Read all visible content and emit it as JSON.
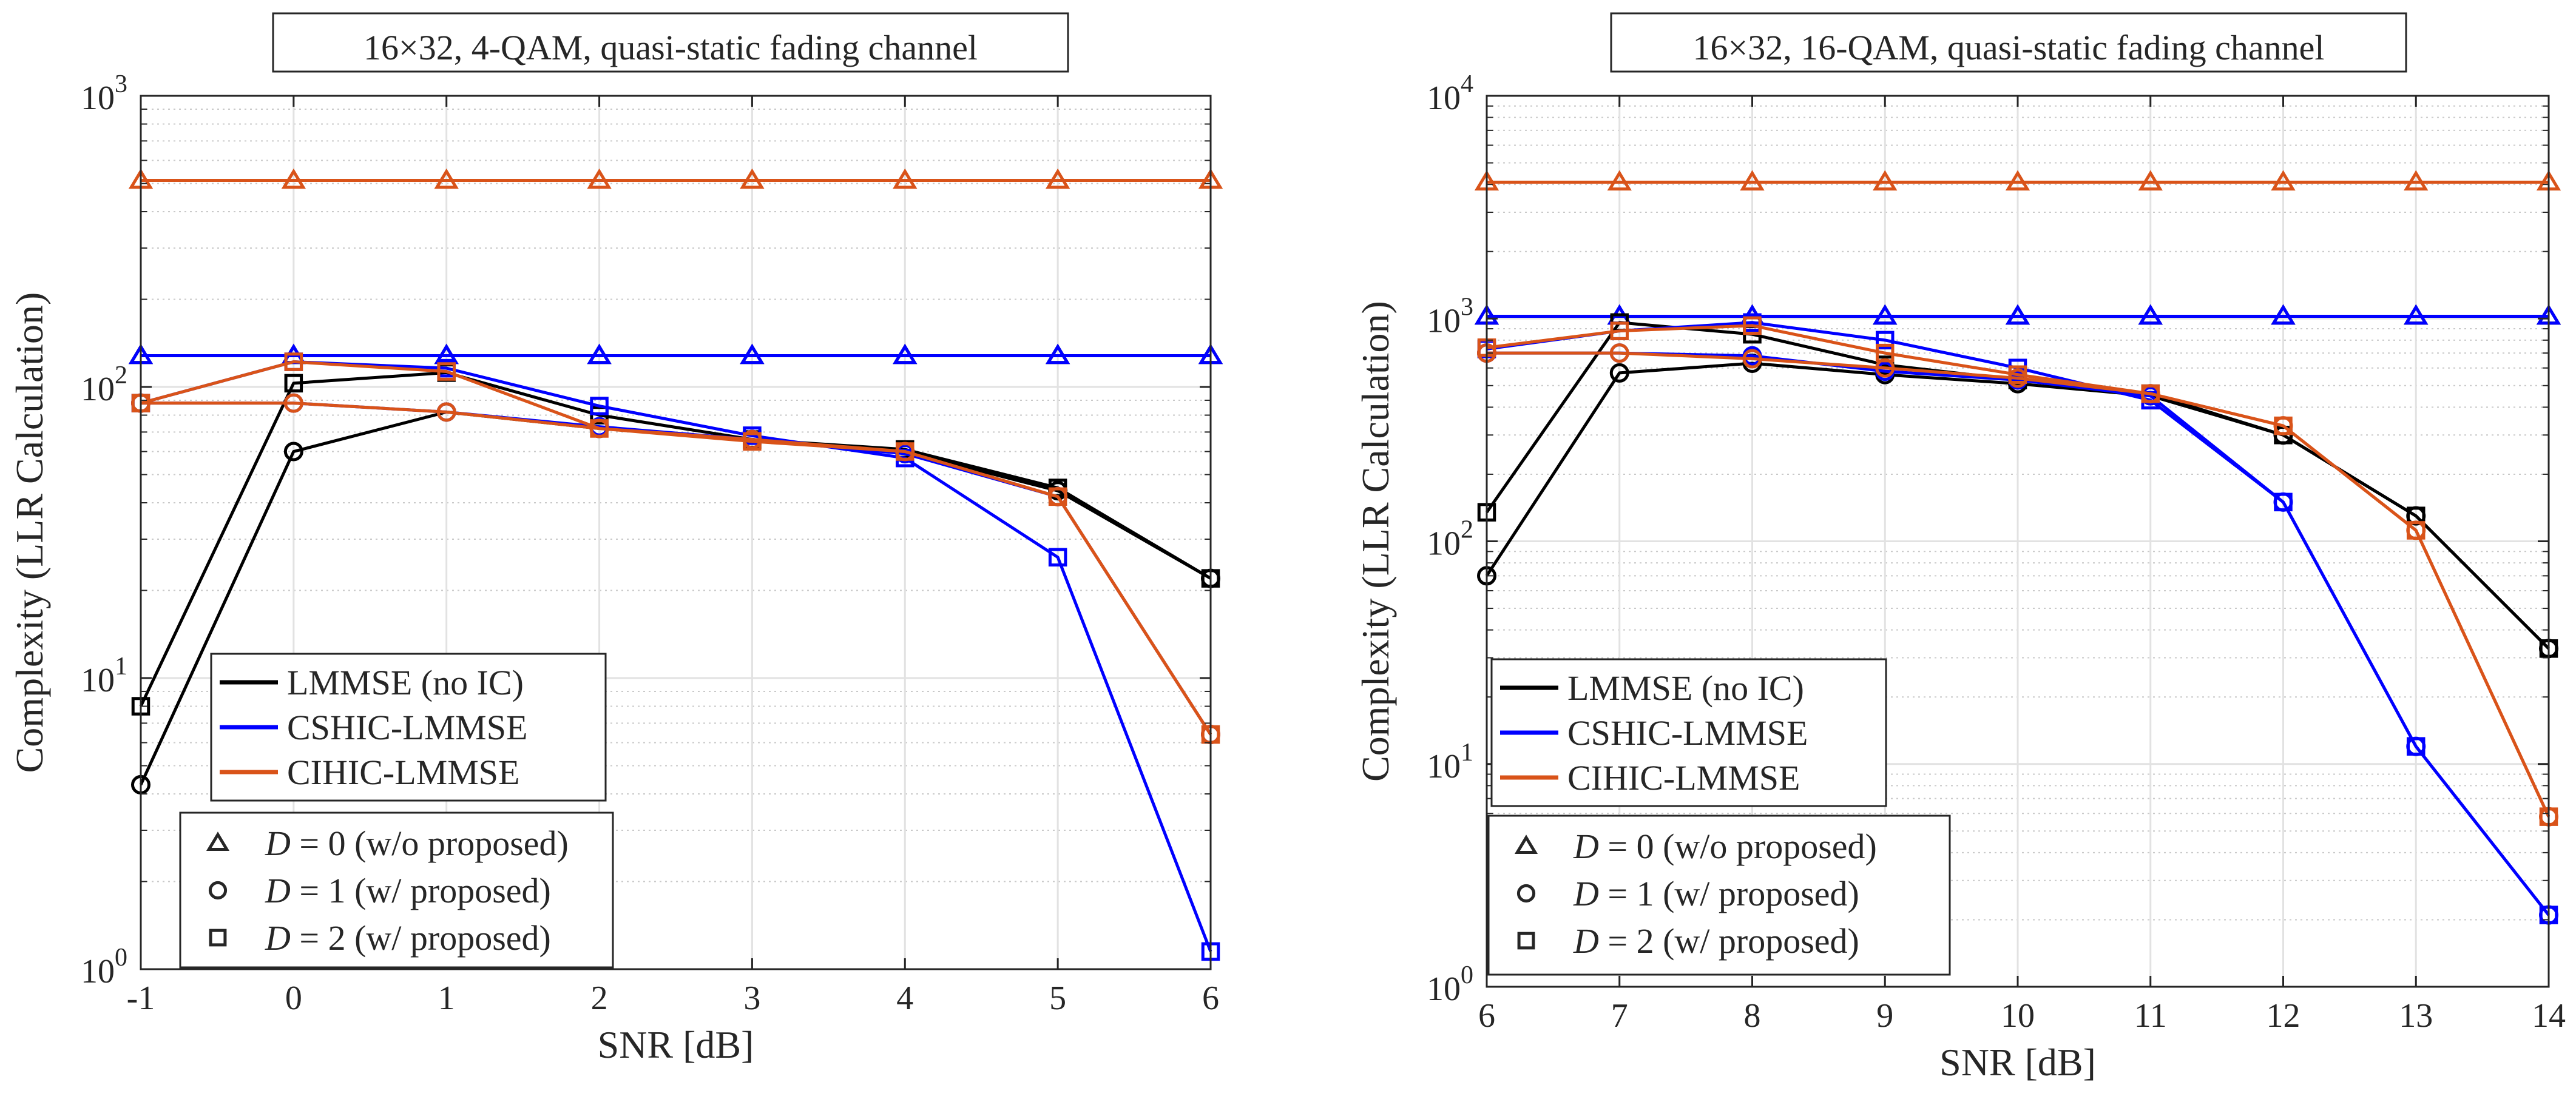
{
  "chart_data": [
    {
      "type": "line",
      "title": "16×32, 4-QAM, quasi-static fading channel",
      "xlabel": "SNR [dB]",
      "ylabel": "Complexity (LLR Calculation)",
      "yscale": "log",
      "xlim": [
        -1,
        6
      ],
      "ylim": [
        1,
        1000
      ],
      "grid": true,
      "x": [
        -1,
        0,
        1,
        2,
        3,
        4,
        5,
        6
      ],
      "xtick_labels": [
        "-1",
        "0",
        "1",
        "2",
        "3",
        "4",
        "5",
        "6"
      ],
      "ytick_labels": [
        {
          "base": "10",
          "exp": "0"
        },
        {
          "base": "10",
          "exp": "1"
        },
        {
          "base": "10",
          "exp": "2"
        },
        {
          "base": "10",
          "exp": "3"
        }
      ],
      "legend_algorithms": {
        "placement": "lower-left",
        "items": [
          {
            "label": "LMMSE (no IC)",
            "color": "#000000"
          },
          {
            "label": "CSHIC-LMMSE",
            "color": "#0000ff"
          },
          {
            "label": "CIHIC-LMMSE",
            "color": "#d95319"
          }
        ]
      },
      "legend_markers": {
        "placement": "bottom-left",
        "items": [
          {
            "marker": "triangle",
            "sym": "D",
            "text": " = 0 (w/o proposed)"
          },
          {
            "marker": "circle",
            "sym": "D",
            "text": " = 1 (w/ proposed)"
          },
          {
            "marker": "square",
            "sym": "D",
            "text": " = 2 (w/ proposed)"
          }
        ]
      },
      "series": [
        {
          "name": "CIHIC-LMMSE, D = 0",
          "color": "#d95319",
          "marker": "triangle",
          "values": [
            512,
            512,
            512,
            512,
            512,
            512,
            512,
            512
          ]
        },
        {
          "name": "LMMSE (no IC), D = 0",
          "color": "#000000",
          "marker": "triangle",
          "values": [
            128,
            128,
            128,
            128,
            128,
            128,
            128,
            128
          ]
        },
        {
          "name": "CSHIC-LMMSE, D = 0",
          "color": "#0000ff",
          "marker": "triangle",
          "values": [
            128,
            128,
            128,
            128,
            128,
            128,
            128,
            128
          ]
        },
        {
          "name": "LMMSE (no IC), D = 1",
          "color": "#000000",
          "marker": "circle",
          "values": [
            4.3,
            60,
            82,
            72,
            66,
            60,
            44,
            22
          ]
        },
        {
          "name": "LMMSE (no IC), D = 2",
          "color": "#000000",
          "marker": "square",
          "values": [
            8,
            103,
            112,
            80,
            66,
            61,
            45,
            22
          ]
        },
        {
          "name": "CSHIC-LMMSE, D = 2",
          "color": "#0000ff",
          "marker": "square",
          "values": [
            88,
            122,
            116,
            86,
            68,
            57,
            26,
            1.15
          ]
        },
        {
          "name": "CSHIC-LMMSE, D = 1",
          "color": "#0000ff",
          "marker": "circle",
          "values": [
            88,
            88,
            82,
            73,
            66,
            59,
            42,
            6.4
          ]
        },
        {
          "name": "CIHIC-LMMSE, D = 1",
          "color": "#d95319",
          "marker": "circle",
          "values": [
            88,
            88,
            82,
            72,
            66,
            60,
            42,
            6.4
          ]
        },
        {
          "name": "CIHIC-LMMSE, D = 2",
          "color": "#d95319",
          "marker": "square",
          "values": [
            88,
            122,
            113,
            72,
            65,
            60,
            42,
            6.4
          ]
        }
      ]
    },
    {
      "type": "line",
      "title": "16×32, 16-QAM, quasi-static fading channel",
      "xlabel": "SNR [dB]",
      "ylabel": "Complexity (LLR Calculation)",
      "yscale": "log",
      "xlim": [
        6,
        14
      ],
      "ylim": [
        1,
        10000
      ],
      "grid": true,
      "x": [
        6,
        7,
        8,
        9,
        10,
        11,
        12,
        13,
        14
      ],
      "xtick_labels": [
        "6",
        "7",
        "8",
        "9",
        "10",
        "11",
        "12",
        "13",
        "14"
      ],
      "ytick_labels": [
        {
          "base": "10",
          "exp": "0"
        },
        {
          "base": "10",
          "exp": "1"
        },
        {
          "base": "10",
          "exp": "2"
        },
        {
          "base": "10",
          "exp": "3"
        },
        {
          "base": "10",
          "exp": "4"
        }
      ],
      "legend_algorithms": {
        "placement": "lower-left",
        "items": [
          {
            "label": "LMMSE (no IC)",
            "color": "#000000"
          },
          {
            "label": "CSHIC-LMMSE",
            "color": "#0000ff"
          },
          {
            "label": "CIHIC-LMMSE",
            "color": "#d95319"
          }
        ]
      },
      "legend_markers": {
        "placement": "bottom-left",
        "items": [
          {
            "marker": "triangle",
            "sym": "D",
            "text": " = 0 (w/o proposed)"
          },
          {
            "marker": "circle",
            "sym": "D",
            "text": " = 1 (w/ proposed)"
          },
          {
            "marker": "square",
            "sym": "D",
            "text": " = 2 (w/ proposed)"
          }
        ]
      },
      "series": [
        {
          "name": "CIHIC-LMMSE, D = 0",
          "color": "#d95319",
          "marker": "triangle",
          "values": [
            4096,
            4096,
            4096,
            4096,
            4096,
            4096,
            4096,
            4096,
            4096
          ]
        },
        {
          "name": "LMMSE (no IC), D = 0",
          "color": "#000000",
          "marker": "triangle",
          "values": [
            1024,
            1024,
            1024,
            1024,
            1024,
            1024,
            1024,
            1024,
            1024
          ]
        },
        {
          "name": "CSHIC-LMMSE, D = 0",
          "color": "#0000ff",
          "marker": "triangle",
          "values": [
            1024,
            1024,
            1024,
            1024,
            1024,
            1024,
            1024,
            1024,
            1024
          ]
        },
        {
          "name": "LMMSE (no IC), D = 1",
          "color": "#000000",
          "marker": "circle",
          "values": [
            70,
            570,
            630,
            560,
            510,
            450,
            300,
            130,
            33
          ]
        },
        {
          "name": "LMMSE (no IC), D = 2",
          "color": "#000000",
          "marker": "square",
          "values": [
            135,
            960,
            850,
            620,
            530,
            460,
            300,
            130,
            33
          ]
        },
        {
          "name": "CSHIC-LMMSE, D = 1",
          "color": "#0000ff",
          "marker": "circle",
          "values": [
            700,
            700,
            680,
            580,
            530,
            450,
            150,
            12,
            2.1
          ]
        },
        {
          "name": "CSHIC-LMMSE, D = 2",
          "color": "#0000ff",
          "marker": "square",
          "values": [
            730,
            880,
            960,
            800,
            600,
            430,
            150,
            12,
            2.1
          ]
        },
        {
          "name": "CIHIC-LMMSE, D = 1",
          "color": "#d95319",
          "marker": "circle",
          "values": [
            700,
            700,
            660,
            600,
            540,
            460,
            330,
            112,
            5.8
          ]
        },
        {
          "name": "CIHIC-LMMSE, D = 2",
          "color": "#d95319",
          "marker": "square",
          "values": [
            740,
            880,
            930,
            700,
            560,
            460,
            330,
            112,
            5.8
          ]
        }
      ]
    }
  ]
}
